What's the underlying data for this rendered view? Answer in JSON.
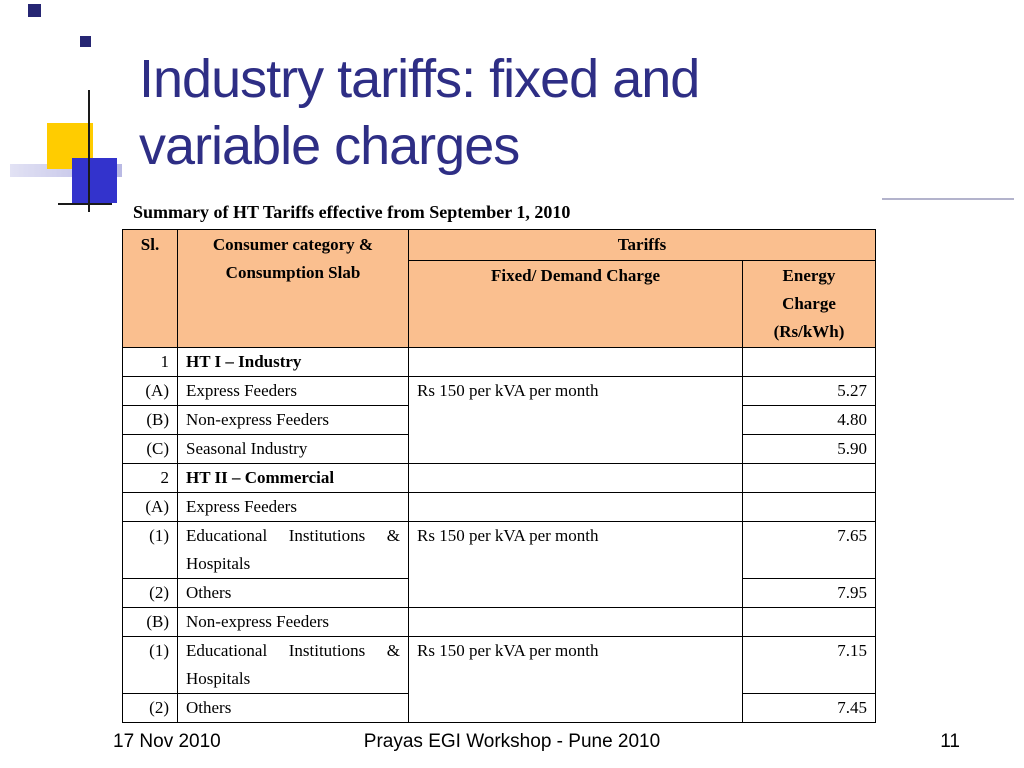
{
  "slide": {
    "title": "Industry tariffs: fixed and variable charges",
    "footer": {
      "date": "17 Nov 2010",
      "event": "Prayas EGI Workshop - Pune 2010",
      "page_number": "11"
    }
  },
  "table": {
    "caption": "Summary of HT Tariffs effective from September 1, 2010",
    "headers": {
      "sl": "Sl.",
      "consumer": "Consumer category & Consumption Slab",
      "tariffs": "Tariffs",
      "fixed": "Fixed/ Demand Charge",
      "energy": "Energy Charge (Rs/kWh)"
    },
    "rows": [
      {
        "sl": "1",
        "category": "HT I – Industry",
        "fixed": "",
        "energy": ""
      },
      {
        "sl": "(A)",
        "category": "Express Feeders",
        "fixed": "Rs 150 per kVA per month",
        "energy": "5.27"
      },
      {
        "sl": "(B)",
        "category": "Non-express Feeders",
        "energy": "4.80"
      },
      {
        "sl": "(C)",
        "category": "Seasonal Industry",
        "energy": "5.90"
      },
      {
        "sl": "2",
        "category": "HT II – Commercial",
        "fixed": "",
        "energy": ""
      },
      {
        "sl": "(A)",
        "category": "Express Feeders",
        "fixed": "",
        "energy": ""
      },
      {
        "sl": "(1)",
        "category": "Educational Institutions & Hospitals",
        "fixed": "Rs 150 per kVA per month",
        "energy": "7.65"
      },
      {
        "sl": "(2)",
        "category": "Others",
        "energy": "7.95"
      },
      {
        "sl": "(B)",
        "category": "Non-express Feeders",
        "fixed": "",
        "energy": ""
      },
      {
        "sl": "(1)",
        "category": "Educational Institutions & Hospitals",
        "fixed": "Rs 150 per kVA per month",
        "energy": "7.15"
      },
      {
        "sl": "(2)",
        "category": "Others",
        "energy": "7.45"
      }
    ]
  },
  "colors": {
    "title": "#2E2E85",
    "table_header_bg": "#FABF8F",
    "deco_yellow": "#FFCC00",
    "deco_blue": "#3333CC",
    "deco_navy": "#262673"
  }
}
